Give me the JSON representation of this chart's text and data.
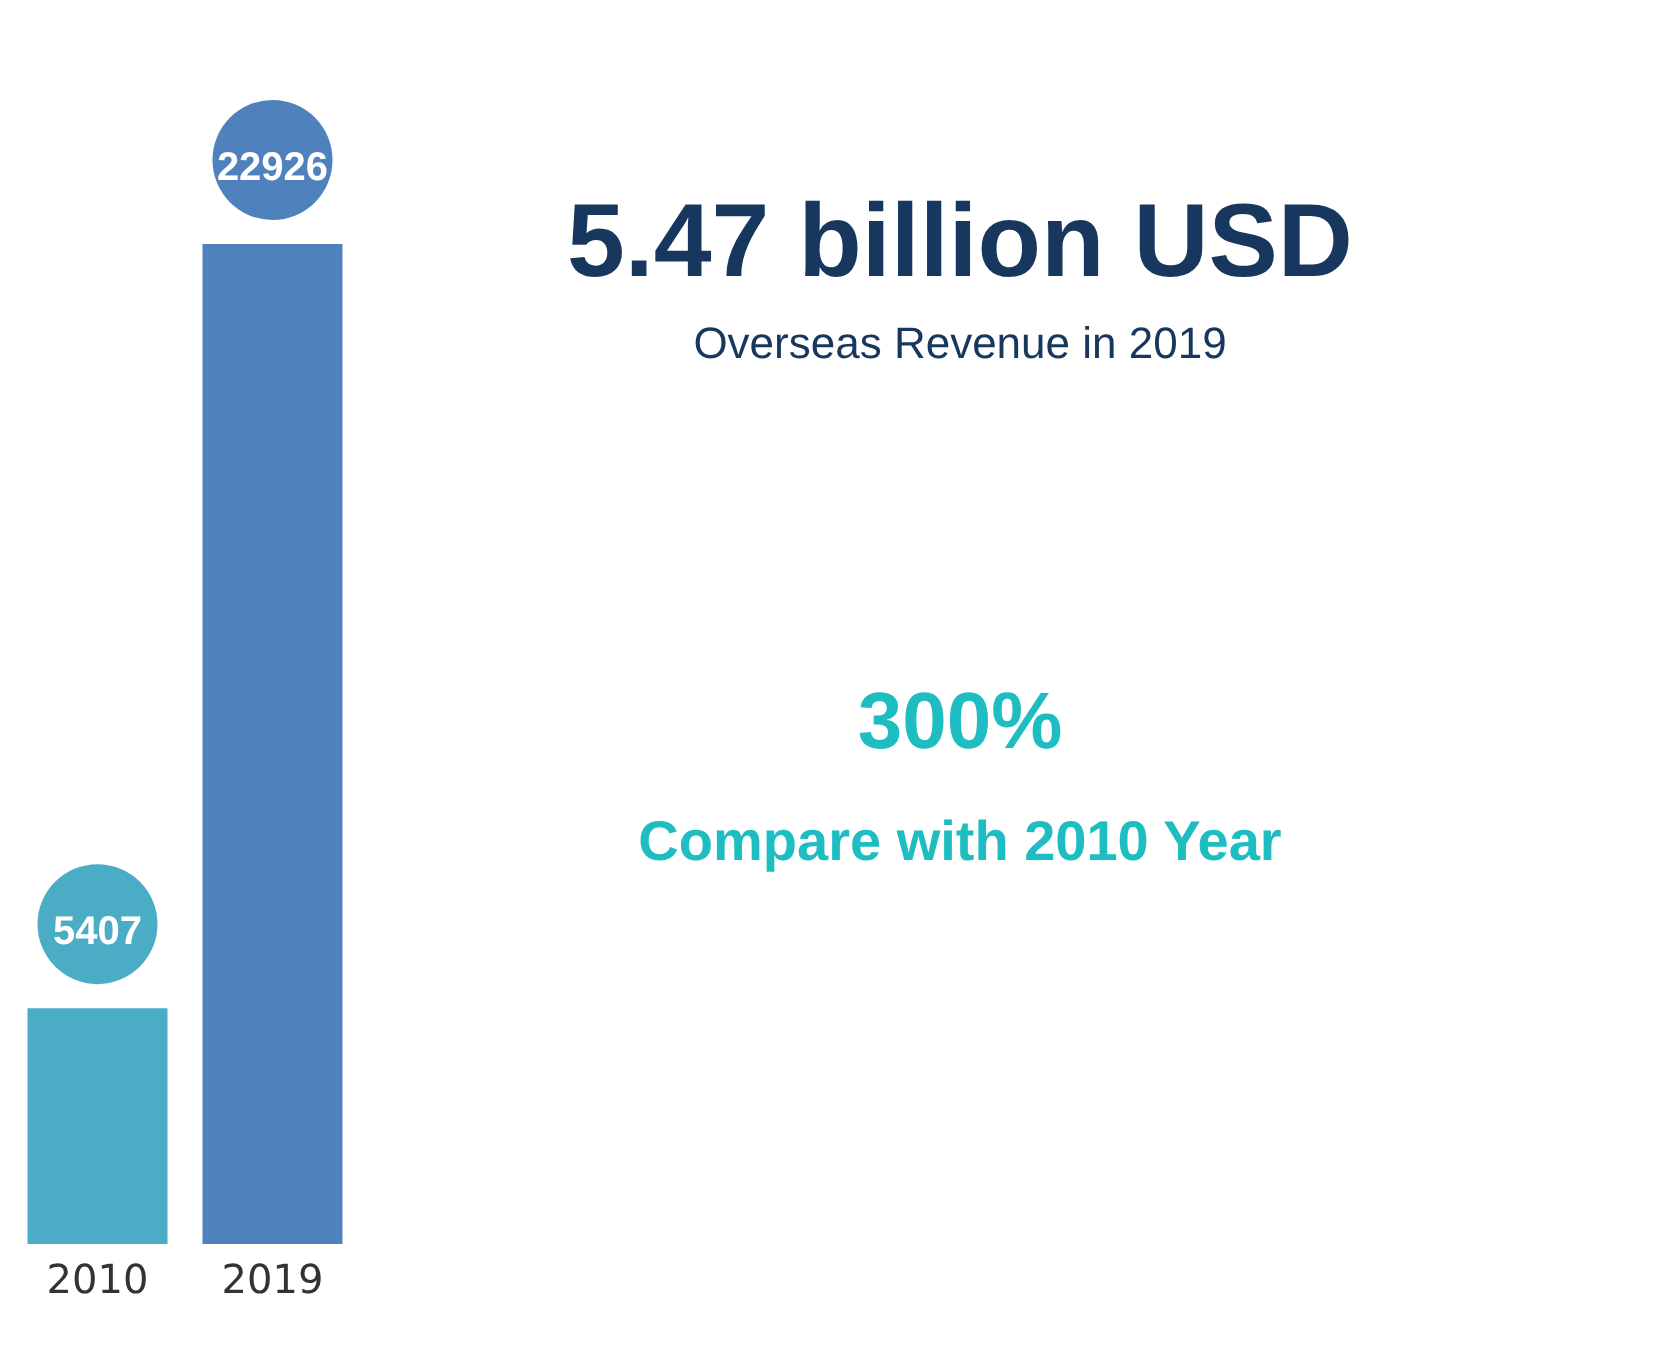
{
  "chart_data": {
    "type": "bar",
    "categories": [
      "2010",
      "2019"
    ],
    "values": [
      5407,
      22926
    ],
    "colors": [
      "#4bacc6",
      "#4f81bd"
    ],
    "data_labels": true,
    "annotations": [
      "5.47 billion USD",
      "Overseas Revenue in 2019",
      "300%",
      "Compare with 2010 Year"
    ]
  }
}
